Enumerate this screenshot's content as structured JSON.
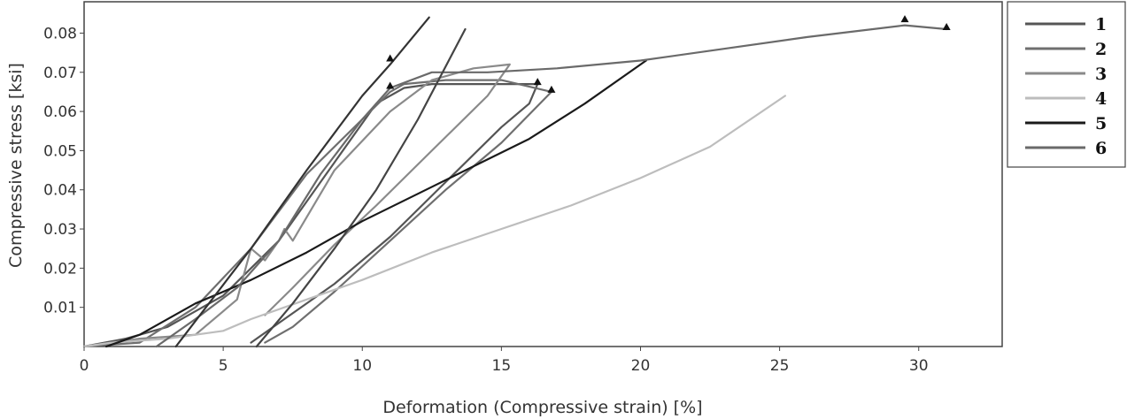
{
  "chart_data": {
    "type": "line",
    "title": "",
    "xlabel": "Deformation (Compressive strain) [%]",
    "ylabel": "Compressive stress [ksi]",
    "xlim": [
      0,
      33
    ],
    "ylim": [
      0,
      0.088
    ],
    "x_ticks": [
      "0",
      "5",
      "10",
      "15",
      "20",
      "25",
      "30"
    ],
    "x_tick_values": [
      0,
      5,
      10,
      15,
      20,
      25,
      30
    ],
    "y_ticks": [
      "0.01",
      "0.02",
      "0.03",
      "0.04",
      "0.05",
      "0.06",
      "0.07",
      "0.08"
    ],
    "y_tick_values": [
      0.01,
      0.02,
      0.03,
      0.04,
      0.05,
      0.06,
      0.07,
      0.08
    ],
    "grid": false,
    "legend_position": "right",
    "series": [
      {
        "name": "1",
        "color": "#555555",
        "points": [
          [
            0,
            0
          ],
          [
            1.5,
            0.002
          ],
          [
            3,
            0.005
          ],
          [
            5,
            0.013
          ],
          [
            7,
            0.027
          ],
          [
            9,
            0.047
          ],
          [
            10.5,
            0.062
          ],
          [
            11.5,
            0.066
          ],
          [
            12.5,
            0.067
          ],
          [
            14,
            0.067
          ],
          [
            16.3,
            0.067
          ],
          [
            16,
            0.062
          ],
          [
            15,
            0.056
          ],
          [
            13,
            0.042
          ],
          [
            11,
            0.028
          ],
          [
            9,
            0.016
          ],
          [
            7,
            0.006
          ],
          [
            6,
            0.001
          ]
        ],
        "markers": [
          [
            16.3,
            0.067
          ]
        ]
      },
      {
        "name": "2",
        "color": "#6f6f6f",
        "points": [
          [
            0,
            0
          ],
          [
            2,
            0.001
          ],
          [
            4,
            0.01
          ],
          [
            6,
            0.025
          ],
          [
            8,
            0.044
          ],
          [
            10,
            0.058
          ],
          [
            11,
            0.065
          ],
          [
            11.5,
            0.067
          ],
          [
            13,
            0.068
          ],
          [
            15,
            0.068
          ],
          [
            16.8,
            0.065
          ],
          [
            15,
            0.052
          ],
          [
            13,
            0.04
          ],
          [
            11,
            0.027
          ],
          [
            9,
            0.014
          ],
          [
            7.5,
            0.005
          ],
          [
            6.5,
            0.001
          ]
        ],
        "markers": [
          [
            11,
            0.066
          ],
          [
            16.8,
            0.065
          ]
        ]
      },
      {
        "name": "3",
        "color": "#8a8a8a",
        "points": [
          [
            0,
            0
          ],
          [
            2,
            0.002
          ],
          [
            4,
            0.003
          ],
          [
            5.5,
            0.012
          ],
          [
            6,
            0.025
          ],
          [
            6.5,
            0.022
          ],
          [
            7,
            0.027
          ],
          [
            7.2,
            0.03
          ],
          [
            7.5,
            0.027
          ],
          [
            9,
            0.045
          ],
          [
            11,
            0.06
          ],
          [
            12.5,
            0.068
          ],
          [
            14,
            0.071
          ],
          [
            15.3,
            0.072
          ],
          [
            14.5,
            0.064
          ],
          [
            12.5,
            0.05
          ],
          [
            10.5,
            0.036
          ],
          [
            9,
            0.026
          ],
          [
            7.5,
            0.015
          ],
          [
            6.5,
            0.008
          ]
        ],
        "markers": []
      },
      {
        "name": "4",
        "color": "#bdbdbd",
        "points": [
          [
            0,
            0
          ],
          [
            1,
            0.001
          ],
          [
            3,
            0.002
          ],
          [
            5,
            0.004
          ],
          [
            6,
            0.007
          ],
          [
            8,
            0.012
          ],
          [
            10,
            0.017
          ],
          [
            12.5,
            0.024
          ],
          [
            15,
            0.03
          ],
          [
            17.5,
            0.036
          ],
          [
            20,
            0.043
          ],
          [
            22.5,
            0.051
          ],
          [
            25.2,
            0.064
          ]
        ],
        "markers": []
      },
      {
        "name": "5",
        "color": "#1a1a1a",
        "points": [
          [
            0.8,
            0
          ],
          [
            2,
            0.003
          ],
          [
            4,
            0.011
          ],
          [
            6,
            0.017
          ],
          [
            8,
            0.024
          ],
          [
            10,
            0.032
          ],
          [
            12,
            0.039
          ],
          [
            14,
            0.046
          ],
          [
            16,
            0.053
          ],
          [
            18,
            0.062
          ],
          [
            20.2,
            0.073
          ]
        ],
        "markers": []
      },
      {
        "name": "6",
        "color": "#6a6a6a",
        "points": [
          [
            2.6,
            0
          ],
          [
            4,
            0.007
          ],
          [
            5.5,
            0.015
          ],
          [
            7,
            0.027
          ],
          [
            8.5,
            0.044
          ],
          [
            10,
            0.058
          ],
          [
            11,
            0.066
          ],
          [
            12.5,
            0.07
          ],
          [
            14.5,
            0.07
          ],
          [
            17,
            0.071
          ],
          [
            20,
            0.073
          ],
          [
            23,
            0.076
          ],
          [
            26,
            0.079
          ],
          [
            29.5,
            0.082
          ],
          [
            31,
            0.081
          ]
        ],
        "markers": [
          [
            29.5,
            0.083
          ],
          [
            31,
            0.081
          ]
        ]
      },
      {
        "name": "",
        "color": "#333333",
        "points": [
          [
            3.3,
            0
          ],
          [
            6,
            0.025
          ],
          [
            8,
            0.045
          ],
          [
            10,
            0.064
          ],
          [
            11,
            0.072
          ],
          [
            12.4,
            0.084
          ]
        ],
        "markers": [
          [
            11,
            0.073
          ]
        ]
      },
      {
        "name": "",
        "color": "#444444",
        "points": [
          [
            6.2,
            0
          ],
          [
            7.5,
            0.011
          ],
          [
            9,
            0.025
          ],
          [
            10.5,
            0.04
          ],
          [
            12,
            0.058
          ],
          [
            13.7,
            0.081
          ]
        ],
        "markers": []
      }
    ]
  }
}
